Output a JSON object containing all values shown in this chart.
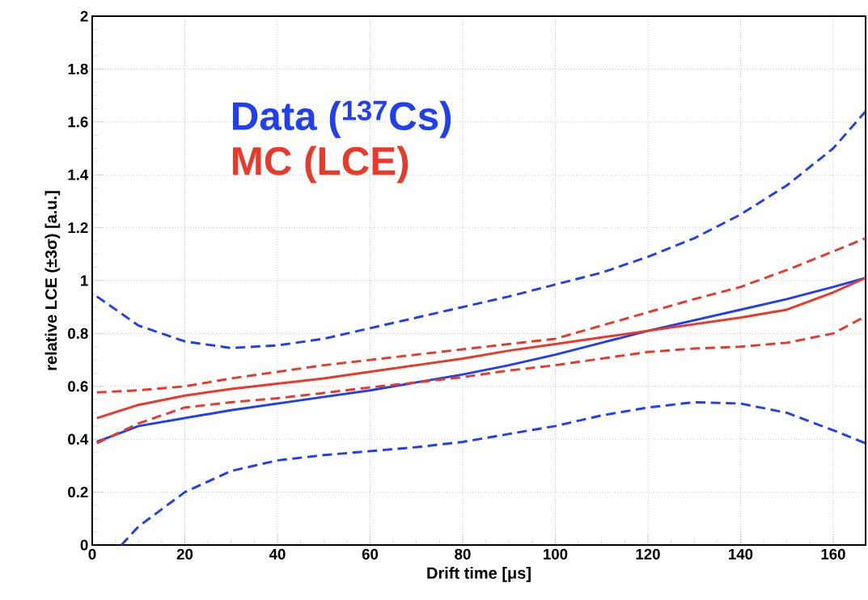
{
  "chart_data": {
    "type": "line",
    "xlabel": "Drift time [μs]",
    "ylabel": "relative LCE (±3σ) [a.u.]",
    "xlim": [
      0,
      167
    ],
    "ylim": [
      0,
      2
    ],
    "xticks": [
      0,
      20,
      40,
      60,
      80,
      100,
      120,
      140,
      160
    ],
    "yticks": [
      0,
      0.2,
      0.4,
      0.6,
      0.8,
      1,
      1.2,
      1.4,
      1.6,
      1.8,
      2
    ],
    "grid": true,
    "series": [
      {
        "name": "Data ($^{137}$Cs)",
        "color": "#2040ee",
        "line_style": "solid",
        "x": [
          1,
          10,
          20,
          30,
          40,
          50,
          60,
          70,
          80,
          90,
          100,
          110,
          120,
          130,
          140,
          150,
          160,
          167
        ],
        "values": [
          0.39,
          0.45,
          0.48,
          0.51,
          0.535,
          0.56,
          0.585,
          0.615,
          0.645,
          0.68,
          0.72,
          0.765,
          0.81,
          0.85,
          0.89,
          0.93,
          0.976,
          1.01
        ]
      },
      {
        "name": "MC   (LCE)",
        "color": "#e83a2a",
        "line_style": "solid",
        "x": [
          1,
          10,
          20,
          30,
          40,
          50,
          60,
          70,
          80,
          90,
          100,
          110,
          120,
          130,
          140,
          150,
          160,
          167
        ],
        "values": [
          0.48,
          0.53,
          0.565,
          0.59,
          0.61,
          0.63,
          0.655,
          0.68,
          0.705,
          0.735,
          0.76,
          0.785,
          0.81,
          0.835,
          0.86,
          0.89,
          0.955,
          1.01
        ]
      },
      {
        "color": "#2040ee",
        "line_style": "dashed",
        "x": [
          1,
          10,
          20,
          30,
          40,
          50,
          60,
          70,
          80,
          90,
          100,
          110,
          120,
          130,
          140,
          150,
          160,
          167
        ],
        "values": [
          0.94,
          0.83,
          0.77,
          0.745,
          0.755,
          0.78,
          0.82,
          0.86,
          0.9,
          0.94,
          0.985,
          1.03,
          1.09,
          1.16,
          1.25,
          1.36,
          1.5,
          1.64
        ]
      },
      {
        "color": "#2040ee",
        "line_style": "dashed",
        "x": [
          6.3,
          10,
          20,
          30,
          40,
          50,
          60,
          70,
          80,
          90,
          100,
          110,
          120,
          130,
          140,
          150,
          160,
          167
        ],
        "values": [
          0,
          0.07,
          0.2,
          0.28,
          0.32,
          0.34,
          0.355,
          0.37,
          0.39,
          0.42,
          0.45,
          0.49,
          0.52,
          0.54,
          0.535,
          0.5,
          0.434,
          0.385
        ]
      },
      {
        "color": "#e83a2a",
        "line_style": "dashed",
        "x": [
          1,
          10,
          20,
          30,
          40,
          50,
          60,
          70,
          80,
          90,
          100,
          110,
          120,
          130,
          140,
          150,
          160,
          167
        ],
        "values": [
          0.577,
          0.585,
          0.6,
          0.63,
          0.655,
          0.68,
          0.7,
          0.72,
          0.74,
          0.76,
          0.78,
          0.83,
          0.88,
          0.93,
          0.976,
          1.04,
          1.11,
          1.16
        ]
      },
      {
        "color": "#e83a2a",
        "line_style": "dashed",
        "x": [
          1,
          10,
          20,
          30,
          40,
          50,
          60,
          70,
          80,
          90,
          100,
          110,
          120,
          130,
          140,
          150,
          160,
          167
        ],
        "values": [
          0.385,
          0.46,
          0.52,
          0.54,
          0.555,
          0.575,
          0.596,
          0.615,
          0.635,
          0.66,
          0.68,
          0.705,
          0.73,
          0.743,
          0.75,
          0.765,
          0.8,
          0.865
        ]
      }
    ]
  }
}
